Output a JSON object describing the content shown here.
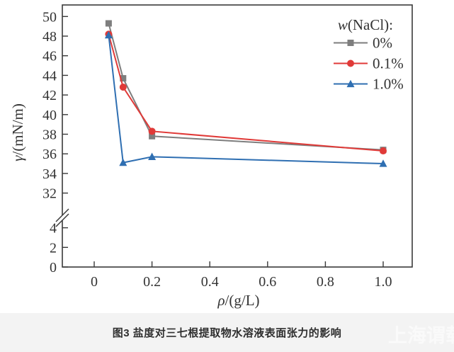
{
  "page": {
    "background": "#ffffff",
    "caption_bar_color": "#f3f3f3"
  },
  "caption": {
    "text": "图3  盐度对三七根提取物水溶液表面张力的影响",
    "watermark": "上海谓载"
  },
  "chart_data": {
    "type": "line",
    "title": "",
    "xlabel": "ρ/(g/L)",
    "ylabel": "γ/(mN/m)",
    "axis_color": "#3a3a3a",
    "grid": false,
    "axis_break": true,
    "x_axis": {
      "ticks": [
        0,
        0.2,
        0.4,
        0.6,
        0.8,
        1.0
      ],
      "tick_labels": [
        "0",
        "0.2",
        "0.4",
        "0.6",
        "0.8",
        "1.0"
      ],
      "range_note": "x range approx -0.11 to 1.1 g/L"
    },
    "y_axis": {
      "upper_ticks": [
        32,
        34,
        36,
        38,
        40,
        42,
        44,
        46,
        48,
        50
      ],
      "lower_ticks": [
        0,
        2,
        4
      ],
      "break_between": [
        4,
        32
      ],
      "units": "mN/m"
    },
    "legend": {
      "title": "w(NaCl):",
      "position": "top-right"
    },
    "x": [
      0.05,
      0.1,
      0.2,
      1.0
    ],
    "series": [
      {
        "name": "0%",
        "color": "#7e7e7e",
        "marker": "square",
        "values": [
          49.3,
          43.7,
          37.8,
          36.4
        ]
      },
      {
        "name": "0.1%",
        "color": "#e03a38",
        "marker": "circle",
        "values": [
          48.2,
          42.8,
          38.3,
          36.3
        ]
      },
      {
        "name": "1.0%",
        "color": "#2f6fb2",
        "marker": "triangle",
        "values": [
          48.1,
          35.1,
          35.7,
          35.0
        ]
      }
    ]
  }
}
